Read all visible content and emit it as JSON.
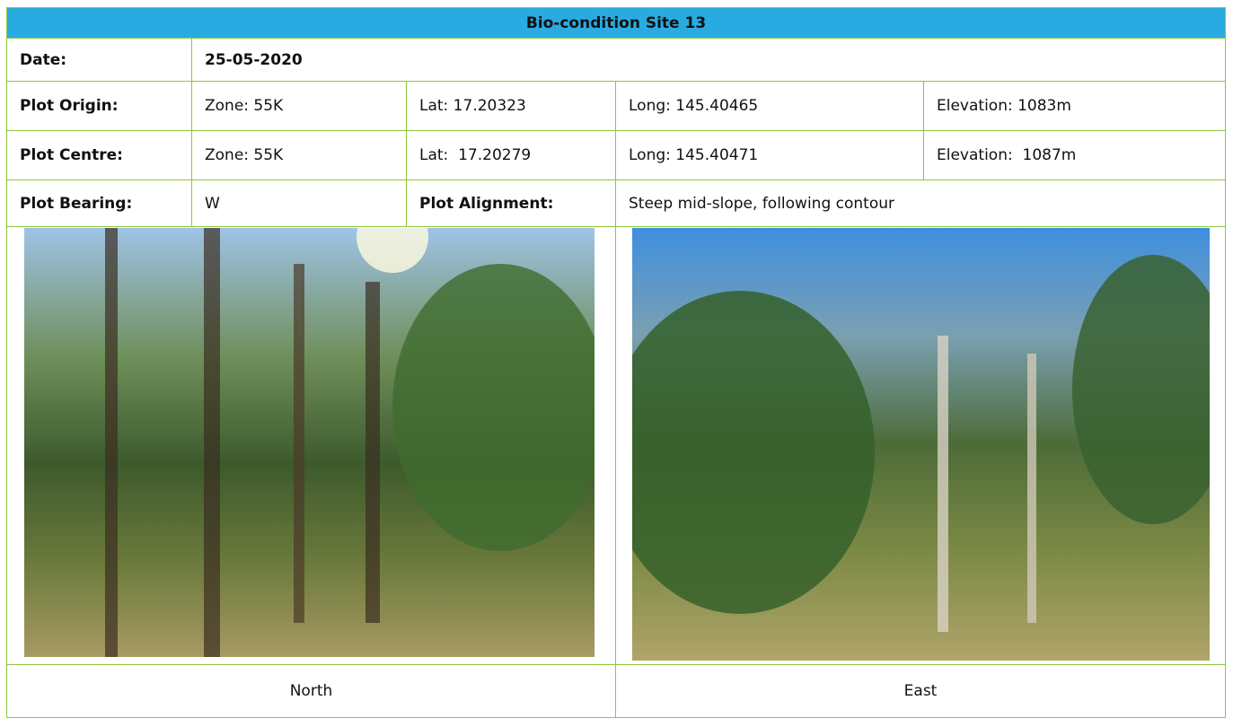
{
  "title": "Bio-condition Site 13",
  "rows": [
    [
      "Date:",
      "25-05-2020"
    ],
    [
      "Plot Origin:",
      "Zone: 55K",
      "Lat: 17.20323",
      "Long: 145.40465",
      "Elevation: 1083m"
    ],
    [
      "Plot Centre:",
      "Zone: 55K",
      "Lat:  17.20279",
      "Long: 145.40471",
      "Elevation:  1087m"
    ],
    [
      "Plot Bearing:",
      "W",
      "Plot Alignment:",
      "Steep mid-slope, following contour"
    ]
  ],
  "photos": [
    {
      "caption": "North"
    },
    {
      "caption": "East"
    }
  ]
}
